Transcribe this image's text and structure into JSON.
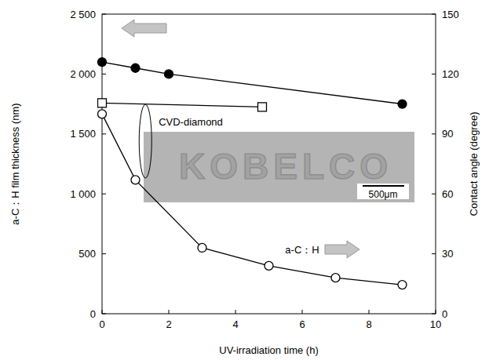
{
  "chart_data": {
    "type": "line",
    "x_label": "UV-irradiation time  (h)",
    "y_label": "a-C：H film thickness  (nm)",
    "y2_label": "Contact angle  (degree)",
    "xlim": [
      0,
      10
    ],
    "xticks": [
      0,
      2,
      4,
      6,
      8,
      10
    ],
    "ylim": [
      0,
      2500
    ],
    "yticks": [
      0,
      500,
      {
        "value": 1000,
        "label": "1 000"
      },
      {
        "value": 1500,
        "label": "1 500"
      },
      {
        "value": 2000,
        "label": "2 000"
      },
      {
        "value": 2500,
        "label": "2 500"
      }
    ],
    "y2lim": [
      0,
      150
    ],
    "y2ticks": [
      0,
      30,
      60,
      90,
      120,
      150
    ],
    "grid": false,
    "series": [
      {
        "color": "#000000",
        "marker": "filled circle",
        "line_style": "solid",
        "x": [
          0,
          1,
          2,
          9
        ],
        "values": [
          2100,
          2050,
          2000,
          1750
        ]
      },
      {
        "name": "CVD-diamond",
        "color": "#000000",
        "marker": "open square",
        "line_style": "solid",
        "axis": "y2",
        "x": [
          0,
          4.8
        ],
        "values": [
          105.5,
          103.5
        ]
      },
      {
        "name": "a-C：H",
        "color": "#000000",
        "marker": "open circle",
        "line_style": "solid",
        "axis": "y2",
        "x": [
          0,
          1,
          3,
          5,
          7,
          9
        ],
        "values": [
          100,
          67,
          33,
          24,
          18,
          14.5
        ]
      }
    ],
    "annotations": [
      "KOBELCO",
      "500μm"
    ]
  }
}
